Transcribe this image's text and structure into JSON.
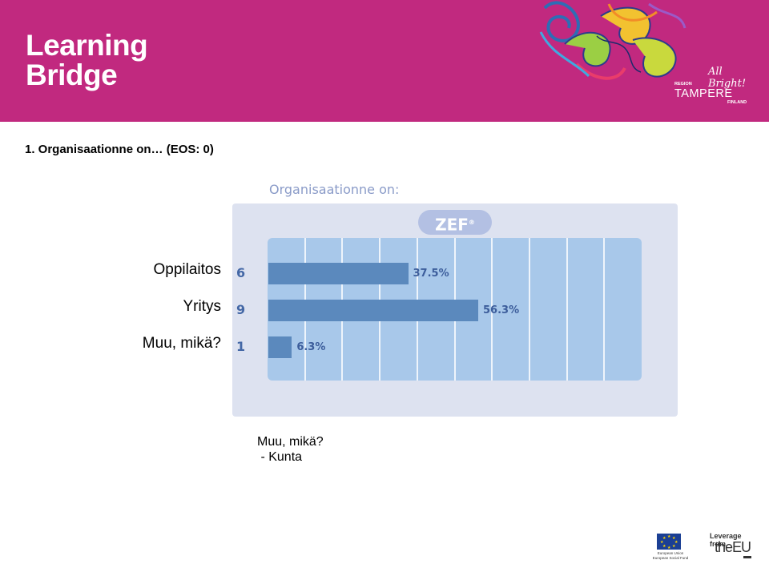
{
  "header": {
    "logo_line1": "Learning",
    "logo_line2": "Bridge",
    "partner_logo": {
      "tagline": "All Bright!",
      "region": "REGION",
      "name": "TAMPERE",
      "country": "FINLAND"
    },
    "background_color": "#c1297f"
  },
  "slide_title": "1. Organisaationne on… (EOS: 0)",
  "chart_data": {
    "type": "bar",
    "orientation": "horizontal",
    "title": "Organisaationne on:",
    "brand": "ZEF",
    "categories": [
      "Oppilaitos",
      "Yritys",
      "Muu, mikä?"
    ],
    "counts": [
      6,
      9,
      1
    ],
    "percent_labels": [
      "37.5%",
      "56.3%",
      "6.3%"
    ],
    "values": [
      37.5,
      56.3,
      6.3
    ],
    "xlim": [
      0,
      100
    ],
    "grid": true,
    "bar_color": "#5b89bd"
  },
  "note": {
    "line1": "Muu, mikä?",
    "line2": " - Kunta"
  },
  "footer_logo": {
    "eu_text_line1": "European Union",
    "eu_text_line2": "European Social Fund",
    "leverage": "Leverage from",
    "brand": "theEU"
  }
}
